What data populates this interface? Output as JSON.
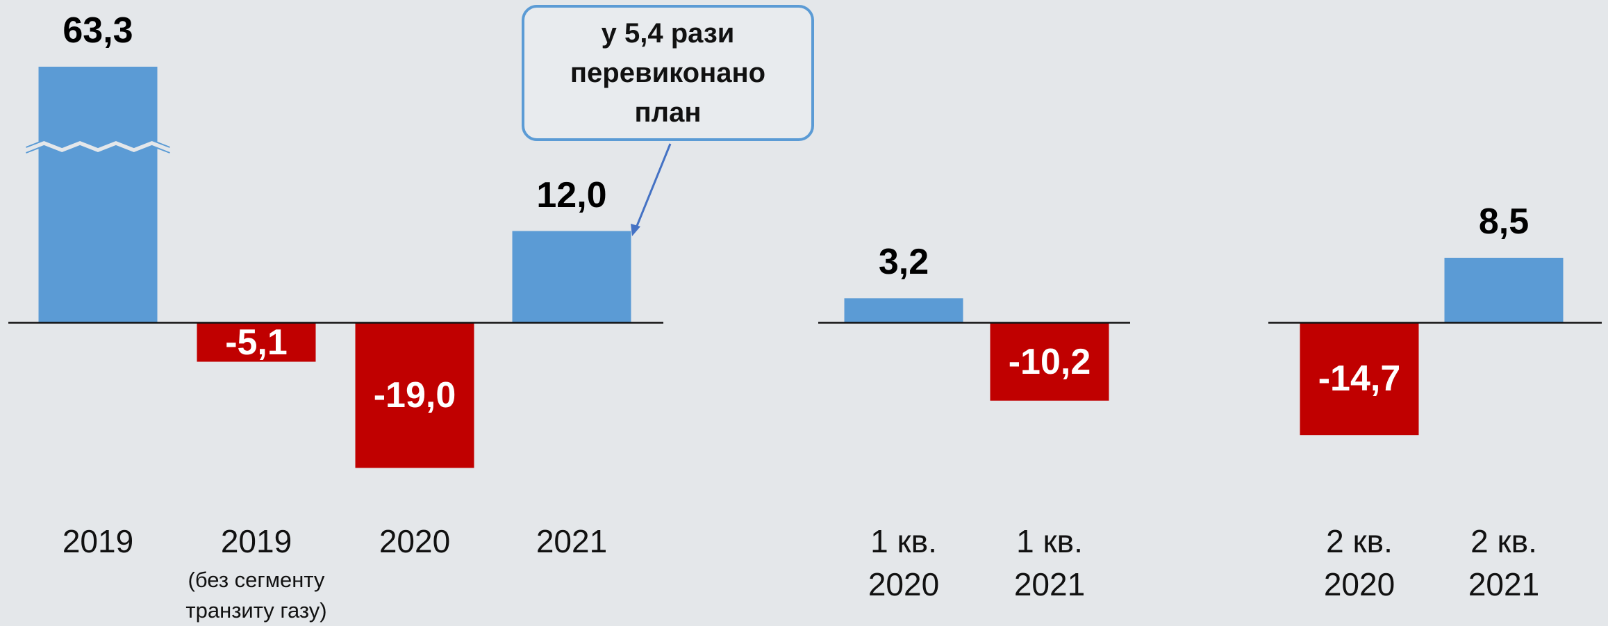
{
  "chart_data": [
    {
      "type": "bar",
      "categories": [
        "2019",
        "2019",
        "2020",
        "2021"
      ],
      "category_notes": [
        null,
        "(без сегменту транзиту газу)",
        null,
        null
      ],
      "values": [
        63.3,
        -5.1,
        -19.0,
        12.0
      ],
      "value_labels": [
        "63,3",
        "-5,1",
        "-19,0",
        "12,0"
      ],
      "color": "#5b9bd5",
      "negative_color": "#c00000",
      "ylim": [
        -23,
        33.5
      ],
      "axis_break": true,
      "annotation": "у 5,4 рази перевиконано план"
    },
    {
      "type": "bar",
      "categories": [
        "1 кв. 2020",
        "1 кв. 2021"
      ],
      "values": [
        3.2,
        -10.2
      ],
      "value_labels": [
        "3,2",
        "-10,2"
      ],
      "color": "#5b9bd5",
      "negative_color": "#c00000",
      "ylim": [
        -23,
        33.5
      ]
    },
    {
      "type": "bar",
      "categories": [
        "2 кв. 2020",
        "2 кв. 2021"
      ],
      "values": [
        -14.7,
        8.5
      ],
      "value_labels": [
        "-14,7",
        "8,5"
      ],
      "color": "#5b9bd5",
      "negative_color": "#c00000",
      "ylim": [
        -23,
        33.5
      ]
    }
  ]
}
